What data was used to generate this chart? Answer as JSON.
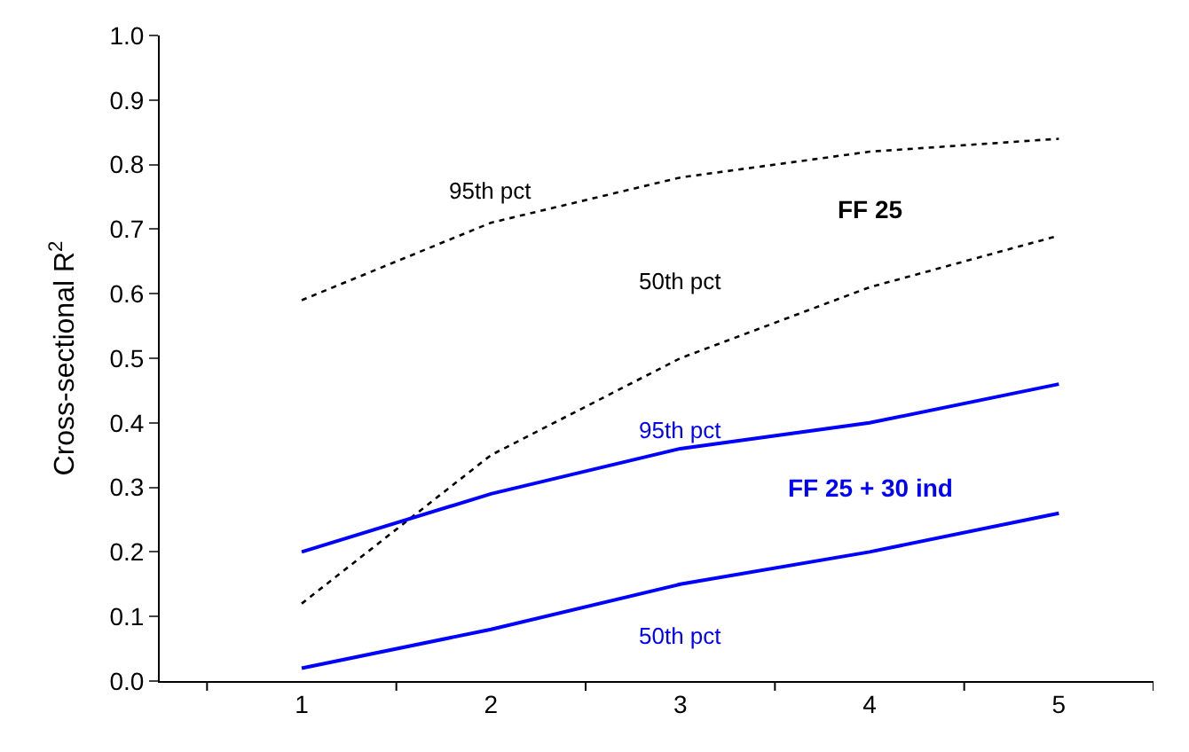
{
  "chart_data": {
    "type": "line",
    "ylabel": "Cross-sectional R$^{2}$",
    "categories": [
      "1",
      "2",
      "3",
      "4",
      "5"
    ],
    "series": [
      {
        "name": "95th pct",
        "color": "#000000",
        "line_style": "dotted",
        "values": [
          0.59,
          0.71,
          0.78,
          0.82,
          0.84
        ]
      },
      {
        "name": "50th pct",
        "color": "#000000",
        "line_style": "dotted",
        "values": [
          0.12,
          0.35,
          0.5,
          0.61,
          0.69
        ]
      },
      {
        "name": "95th pct",
        "color": "#0000ff",
        "line_style": "solid",
        "values": [
          0.2,
          0.29,
          0.36,
          0.4,
          0.46
        ]
      },
      {
        "name": "50th pct",
        "color": "#0000ff",
        "line_style": "solid",
        "values": [
          0.02,
          0.08,
          0.15,
          0.2,
          0.26
        ]
      }
    ],
    "annotations": [
      "FF 25",
      "FF 25 + 30 ind"
    ],
    "ylim": [
      0,
      1
    ],
    "yticks": [
      {
        "value": 0,
        "label": "0.0"
      },
      0.1,
      0.2,
      0.3,
      0.4,
      0.5,
      0.6,
      0.7,
      0.8,
      0.9,
      {
        "value": 1,
        "label": "1.0"
      }
    ],
    "legend": false,
    "marker": "none"
  }
}
